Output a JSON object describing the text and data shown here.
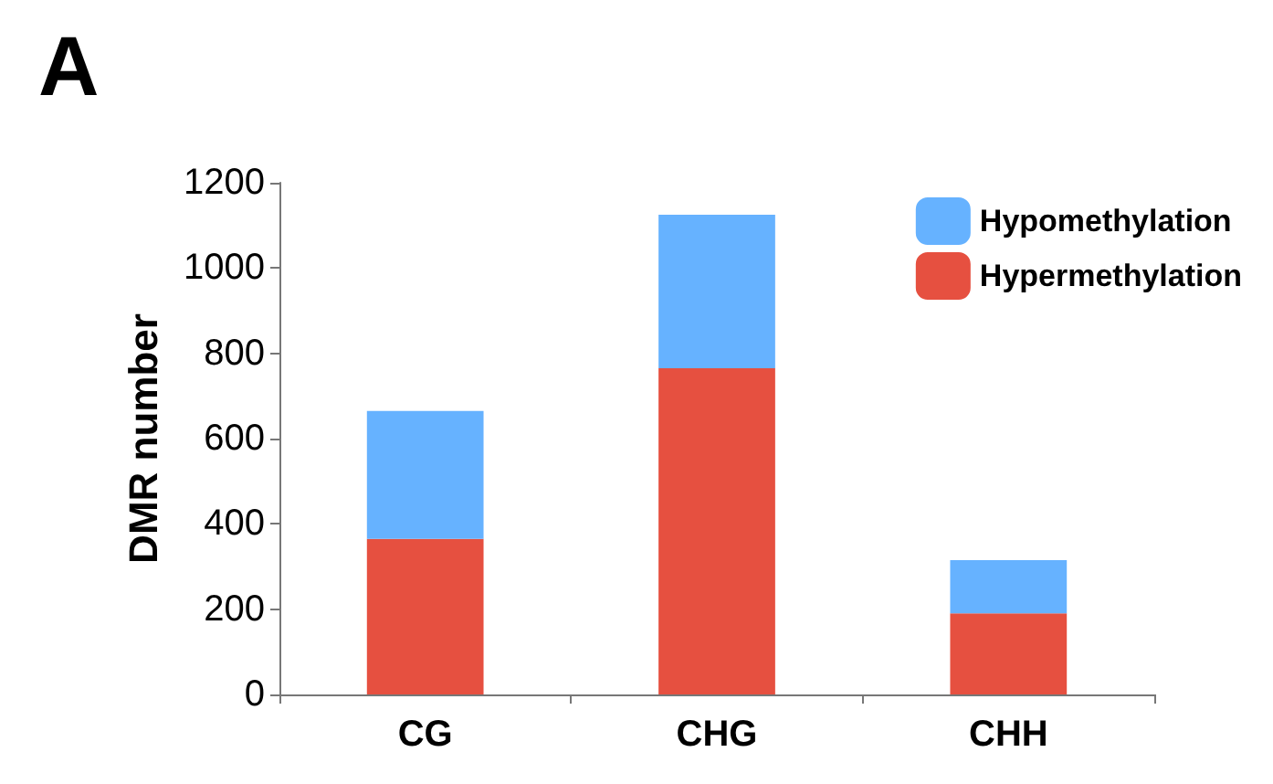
{
  "chart_data": {
    "type": "bar",
    "title": "A",
    "ylabel": "DMR number",
    "categories": [
      "CG",
      "CHG",
      "CHH"
    ],
    "stacked": true,
    "series": [
      {
        "name": "Hypermethylation",
        "color": "#e65040",
        "values": [
          365,
          765,
          190
        ]
      },
      {
        "name": "Hypomethylation",
        "color": "#66b2ff",
        "values": [
          300,
          360,
          125
        ]
      }
    ],
    "ylim": [
      0,
      1200
    ],
    "yticks": [
      0,
      200,
      400,
      600,
      800,
      1000,
      1200
    ],
    "grid": false,
    "legend": "top right"
  }
}
